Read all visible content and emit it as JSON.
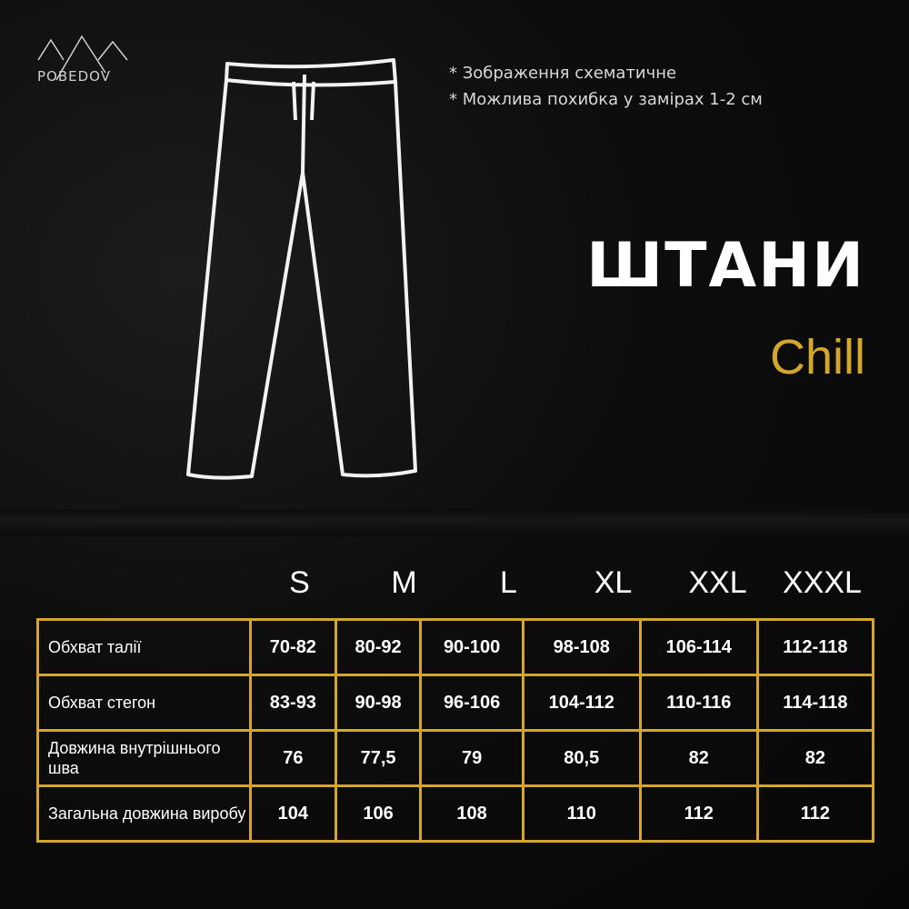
{
  "brand": {
    "logo_text": "POBEDOV"
  },
  "notes": [
    "* Зображення схематичне",
    "* Можлива похибка у замірах 1-2 см"
  ],
  "title": "ШТАНИ",
  "subtitle": "Chill",
  "colors": {
    "accent": "#d4a72c",
    "background": "#0b0b0b"
  },
  "size_table": {
    "sizes": [
      "S",
      "M",
      "L",
      "XL",
      "XXL",
      "XXXL"
    ],
    "rows": [
      {
        "label": "Обхват талії",
        "values": [
          "70-82",
          "80-92",
          "90-100",
          "98-108",
          "106-114",
          "112-118"
        ]
      },
      {
        "label": "Обхват стегон",
        "values": [
          "83-93",
          "90-98",
          "96-106",
          "104-112",
          "110-116",
          "114-118"
        ]
      },
      {
        "label": "Довжина внутрішнього шва",
        "values": [
          "76",
          "77,5",
          "79",
          "80,5",
          "82",
          "82"
        ]
      },
      {
        "label": "Загальна довжина виробу",
        "values": [
          "104",
          "106",
          "108",
          "110",
          "112",
          "112"
        ]
      }
    ]
  }
}
